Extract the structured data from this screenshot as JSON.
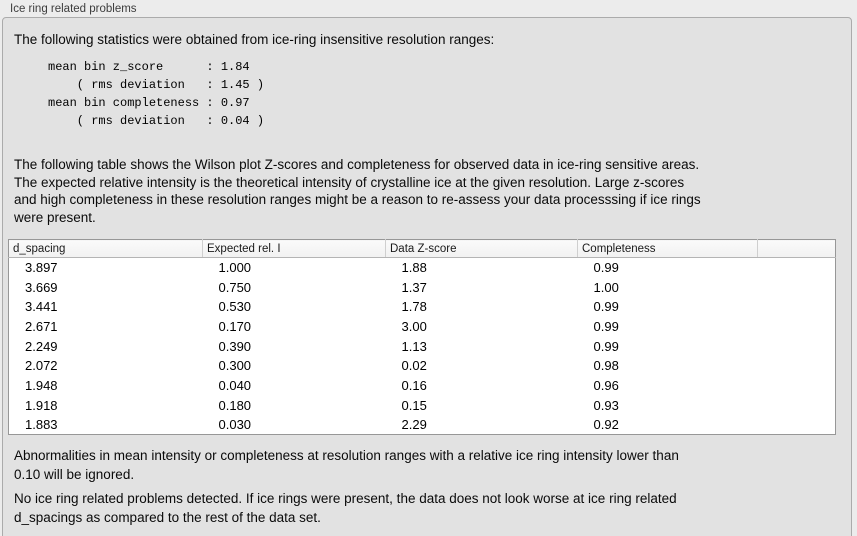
{
  "panel": {
    "title": "Ice ring related problems",
    "intro": "The following statistics were obtained from ice-ring insensitive resolution ranges:",
    "stats_block": [
      "mean bin z_score      : 1.84",
      "    ( rms deviation   : 1.45 )",
      "mean bin completeness : 0.97",
      "    ( rms deviation   : 0.04 )"
    ],
    "table_description": [
      "The following table shows the Wilson plot Z-scores and completeness for observed data in ice-ring sensitive areas.",
      "The expected relative intensity is the theoretical intensity of crystalline ice at the given resolution. Large z-scores",
      "and high completeness in these resolution ranges might be a reason to re-assess your data processsing if ice rings",
      "were present."
    ],
    "table": {
      "columns": [
        "d_spacing",
        "Expected rel. I",
        "Data Z-score",
        "Completeness",
        ""
      ],
      "rows": [
        [
          "3.897",
          "1.000",
          "1.88",
          "0.99",
          ""
        ],
        [
          "3.669",
          "0.750",
          "1.37",
          "1.00",
          ""
        ],
        [
          "3.441",
          "0.530",
          "1.78",
          "0.99",
          ""
        ],
        [
          "2.671",
          "0.170",
          "3.00",
          "0.99",
          ""
        ],
        [
          "2.249",
          "0.390",
          "1.13",
          "0.99",
          ""
        ],
        [
          "2.072",
          "0.300",
          "0.02",
          "0.98",
          ""
        ],
        [
          "1.948",
          "0.040",
          "0.16",
          "0.96",
          ""
        ],
        [
          "1.918",
          "0.180",
          "0.15",
          "0.93",
          ""
        ],
        [
          "1.883",
          "0.030",
          "2.29",
          "0.92",
          ""
        ]
      ]
    },
    "ignore_note": [
      "Abnormalities in mean intensity or completeness at resolution ranges with a relative ice ring intensity lower than",
      "0.10 will be ignored."
    ],
    "conclusion": [
      "No ice ring related problems detected. If ice rings were present, the data does not look worse at ice ring related",
      "d_spacings as compared to the rest of the data set."
    ]
  }
}
